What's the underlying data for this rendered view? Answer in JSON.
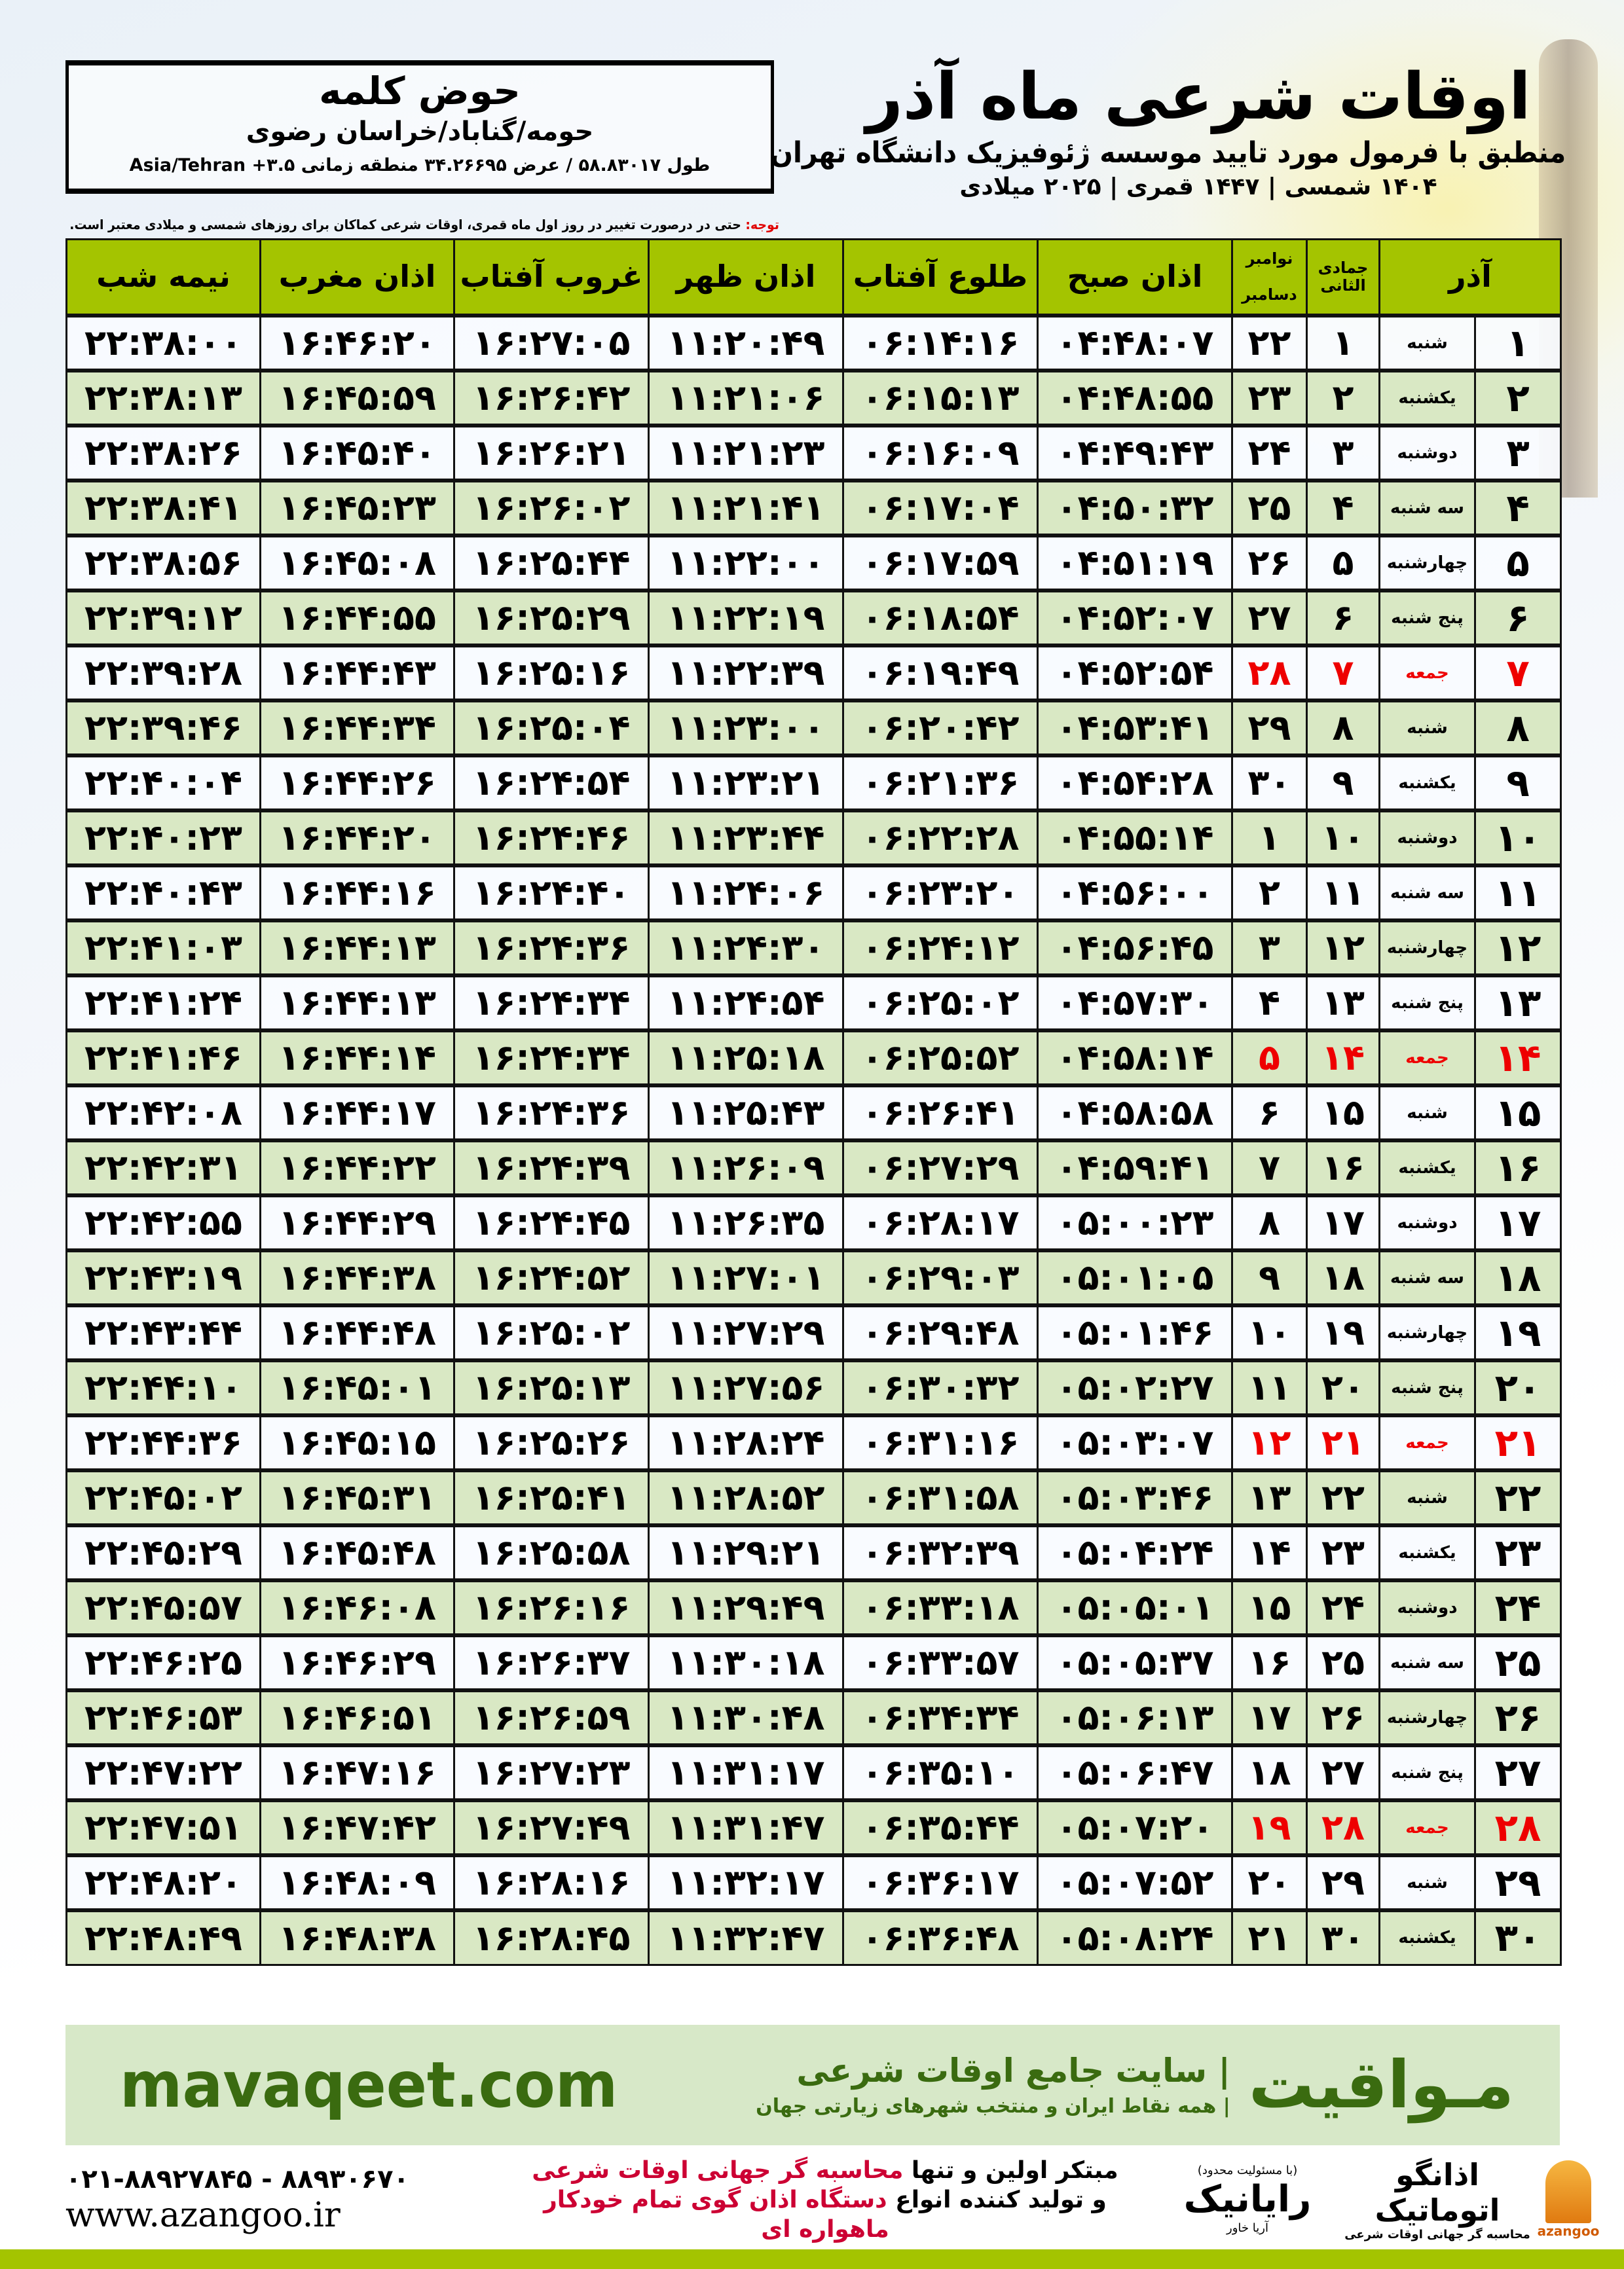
{
  "header": {
    "title": "اوقات شرعی ماه آذر",
    "subtitle": "منطبق با فرمول مورد تایید موسسه ژئوفیزیک دانشگاه تهران",
    "dates": "۱۴۰۴ شمسی | ۱۴۴۷ قمری | ۲۰۲۵ میلادی"
  },
  "location": {
    "name": "حوض کلمه",
    "region": "حومه/گناباد/خراسان رضوی",
    "coords": "طول ۵۸.۸۳۰۱۷ / عرض ۳۴.۲۶۶۹۵ منطقه زمانی ۳.۵+ Asia/Tehran"
  },
  "note": {
    "label": "توجه:",
    "text": " حتی در درصورت تغییر در روز اول ماه قمری، اوقات شرعی کماکان برای روزهای شمسی و میلادی معتبر است."
  },
  "colors": {
    "header_green": "#a4c400",
    "row_green": "#d9e8c4",
    "holiday_red": "#ee0000",
    "brand_green": "#3a6b10"
  },
  "table": {
    "columns": {
      "day": "آذر",
      "hijri": "جمادی الثانی",
      "greg_top": "نوامبر",
      "greg_bottom": "دسامبر",
      "fajr": "اذان صبح",
      "sunrise": "طلوع آفتاب",
      "dhuhr": "اذان ظهر",
      "sunset": "غروب آفتاب",
      "maghrib": "اذان مغرب",
      "midnight": "نیمه شب"
    },
    "rows": [
      {
        "day": "۱",
        "weekday": "شنبه",
        "hijri": "۱",
        "greg": "۲۲",
        "fajr": "۰۴:۴۸:۰۷",
        "sunrise": "۰۶:۱۴:۱۶",
        "dhuhr": "۱۱:۲۰:۴۹",
        "sunset": "۱۶:۲۷:۰۵",
        "maghrib": "۱۶:۴۶:۲۰",
        "midnight": "۲۲:۳۸:۰۰",
        "holiday": false
      },
      {
        "day": "۲",
        "weekday": "یکشنبه",
        "hijri": "۲",
        "greg": "۲۳",
        "fajr": "۰۴:۴۸:۵۵",
        "sunrise": "۰۶:۱۵:۱۳",
        "dhuhr": "۱۱:۲۱:۰۶",
        "sunset": "۱۶:۲۶:۴۲",
        "maghrib": "۱۶:۴۵:۵۹",
        "midnight": "۲۲:۳۸:۱۳",
        "holiday": false
      },
      {
        "day": "۳",
        "weekday": "دوشنبه",
        "hijri": "۳",
        "greg": "۲۴",
        "fajr": "۰۴:۴۹:۴۳",
        "sunrise": "۰۶:۱۶:۰۹",
        "dhuhr": "۱۱:۲۱:۲۳",
        "sunset": "۱۶:۲۶:۲۱",
        "maghrib": "۱۶:۴۵:۴۰",
        "midnight": "۲۲:۳۸:۲۶",
        "holiday": false
      },
      {
        "day": "۴",
        "weekday": "سه شنبه",
        "hijri": "۴",
        "greg": "۲۵",
        "fajr": "۰۴:۵۰:۳۲",
        "sunrise": "۰۶:۱۷:۰۴",
        "dhuhr": "۱۱:۲۱:۴۱",
        "sunset": "۱۶:۲۶:۰۲",
        "maghrib": "۱۶:۴۵:۲۳",
        "midnight": "۲۲:۳۸:۴۱",
        "holiday": false
      },
      {
        "day": "۵",
        "weekday": "چهارشنبه",
        "hijri": "۵",
        "greg": "۲۶",
        "fajr": "۰۴:۵۱:۱۹",
        "sunrise": "۰۶:۱۷:۵۹",
        "dhuhr": "۱۱:۲۲:۰۰",
        "sunset": "۱۶:۲۵:۴۴",
        "maghrib": "۱۶:۴۵:۰۸",
        "midnight": "۲۲:۳۸:۵۶",
        "holiday": false
      },
      {
        "day": "۶",
        "weekday": "پنج شنبه",
        "hijri": "۶",
        "greg": "۲۷",
        "fajr": "۰۴:۵۲:۰۷",
        "sunrise": "۰۶:۱۸:۵۴",
        "dhuhr": "۱۱:۲۲:۱۹",
        "sunset": "۱۶:۲۵:۲۹",
        "maghrib": "۱۶:۴۴:۵۵",
        "midnight": "۲۲:۳۹:۱۲",
        "holiday": false
      },
      {
        "day": "۷",
        "weekday": "جمعه",
        "hijri": "۷",
        "greg": "۲۸",
        "fajr": "۰۴:۵۲:۵۴",
        "sunrise": "۰۶:۱۹:۴۹",
        "dhuhr": "۱۱:۲۲:۳۹",
        "sunset": "۱۶:۲۵:۱۶",
        "maghrib": "۱۶:۴۴:۴۳",
        "midnight": "۲۲:۳۹:۲۸",
        "holiday": true
      },
      {
        "day": "۸",
        "weekday": "شنبه",
        "hijri": "۸",
        "greg": "۲۹",
        "fajr": "۰۴:۵۳:۴۱",
        "sunrise": "۰۶:۲۰:۴۲",
        "dhuhr": "۱۱:۲۳:۰۰",
        "sunset": "۱۶:۲۵:۰۴",
        "maghrib": "۱۶:۴۴:۳۴",
        "midnight": "۲۲:۳۹:۴۶",
        "holiday": false
      },
      {
        "day": "۹",
        "weekday": "یکشنبه",
        "hijri": "۹",
        "greg": "۳۰",
        "fajr": "۰۴:۵۴:۲۸",
        "sunrise": "۰۶:۲۱:۳۶",
        "dhuhr": "۱۱:۲۳:۲۱",
        "sunset": "۱۶:۲۴:۵۴",
        "maghrib": "۱۶:۴۴:۲۶",
        "midnight": "۲۲:۴۰:۰۴",
        "holiday": false
      },
      {
        "day": "۱۰",
        "weekday": "دوشنبه",
        "hijri": "۱۰",
        "greg": "۱",
        "fajr": "۰۴:۵۵:۱۴",
        "sunrise": "۰۶:۲۲:۲۸",
        "dhuhr": "۱۱:۲۳:۴۴",
        "sunset": "۱۶:۲۴:۴۶",
        "maghrib": "۱۶:۴۴:۲۰",
        "midnight": "۲۲:۴۰:۲۳",
        "holiday": false
      },
      {
        "day": "۱۱",
        "weekday": "سه شنبه",
        "hijri": "۱۱",
        "greg": "۲",
        "fajr": "۰۴:۵۶:۰۰",
        "sunrise": "۰۶:۲۳:۲۰",
        "dhuhr": "۱۱:۲۴:۰۶",
        "sunset": "۱۶:۲۴:۴۰",
        "maghrib": "۱۶:۴۴:۱۶",
        "midnight": "۲۲:۴۰:۴۳",
        "holiday": false
      },
      {
        "day": "۱۲",
        "weekday": "چهارشنبه",
        "hijri": "۱۲",
        "greg": "۳",
        "fajr": "۰۴:۵۶:۴۵",
        "sunrise": "۰۶:۲۴:۱۲",
        "dhuhr": "۱۱:۲۴:۳۰",
        "sunset": "۱۶:۲۴:۳۶",
        "maghrib": "۱۶:۴۴:۱۳",
        "midnight": "۲۲:۴۱:۰۳",
        "holiday": false
      },
      {
        "day": "۱۳",
        "weekday": "پنج شنبه",
        "hijri": "۱۳",
        "greg": "۴",
        "fajr": "۰۴:۵۷:۳۰",
        "sunrise": "۰۶:۲۵:۰۲",
        "dhuhr": "۱۱:۲۴:۵۴",
        "sunset": "۱۶:۲۴:۳۴",
        "maghrib": "۱۶:۴۴:۱۳",
        "midnight": "۲۲:۴۱:۲۴",
        "holiday": false
      },
      {
        "day": "۱۴",
        "weekday": "جمعه",
        "hijri": "۱۴",
        "greg": "۵",
        "fajr": "۰۴:۵۸:۱۴",
        "sunrise": "۰۶:۲۵:۵۲",
        "dhuhr": "۱۱:۲۵:۱۸",
        "sunset": "۱۶:۲۴:۳۴",
        "maghrib": "۱۶:۴۴:۱۴",
        "midnight": "۲۲:۴۱:۴۶",
        "holiday": true
      },
      {
        "day": "۱۵",
        "weekday": "شنبه",
        "hijri": "۱۵",
        "greg": "۶",
        "fajr": "۰۴:۵۸:۵۸",
        "sunrise": "۰۶:۲۶:۴۱",
        "dhuhr": "۱۱:۲۵:۴۳",
        "sunset": "۱۶:۲۴:۳۶",
        "maghrib": "۱۶:۴۴:۱۷",
        "midnight": "۲۲:۴۲:۰۸",
        "holiday": false
      },
      {
        "day": "۱۶",
        "weekday": "یکشنبه",
        "hijri": "۱۶",
        "greg": "۷",
        "fajr": "۰۴:۵۹:۴۱",
        "sunrise": "۰۶:۲۷:۲۹",
        "dhuhr": "۱۱:۲۶:۰۹",
        "sunset": "۱۶:۲۴:۳۹",
        "maghrib": "۱۶:۴۴:۲۲",
        "midnight": "۲۲:۴۲:۳۱",
        "holiday": false
      },
      {
        "day": "۱۷",
        "weekday": "دوشنبه",
        "hijri": "۱۷",
        "greg": "۸",
        "fajr": "۰۵:۰۰:۲۳",
        "sunrise": "۰۶:۲۸:۱۷",
        "dhuhr": "۱۱:۲۶:۳۵",
        "sunset": "۱۶:۲۴:۴۵",
        "maghrib": "۱۶:۴۴:۲۹",
        "midnight": "۲۲:۴۲:۵۵",
        "holiday": false
      },
      {
        "day": "۱۸",
        "weekday": "سه شنبه",
        "hijri": "۱۸",
        "greg": "۹",
        "fajr": "۰۵:۰۱:۰۵",
        "sunrise": "۰۶:۲۹:۰۳",
        "dhuhr": "۱۱:۲۷:۰۱",
        "sunset": "۱۶:۲۴:۵۲",
        "maghrib": "۱۶:۴۴:۳۸",
        "midnight": "۲۲:۴۳:۱۹",
        "holiday": false
      },
      {
        "day": "۱۹",
        "weekday": "چهارشنبه",
        "hijri": "۱۹",
        "greg": "۱۰",
        "fajr": "۰۵:۰۱:۴۶",
        "sunrise": "۰۶:۲۹:۴۸",
        "dhuhr": "۱۱:۲۷:۲۹",
        "sunset": "۱۶:۲۵:۰۲",
        "maghrib": "۱۶:۴۴:۴۸",
        "midnight": "۲۲:۴۳:۴۴",
        "holiday": false
      },
      {
        "day": "۲۰",
        "weekday": "پنج شنبه",
        "hijri": "۲۰",
        "greg": "۱۱",
        "fajr": "۰۵:۰۲:۲۷",
        "sunrise": "۰۶:۳۰:۳۲",
        "dhuhr": "۱۱:۲۷:۵۶",
        "sunset": "۱۶:۲۵:۱۳",
        "maghrib": "۱۶:۴۵:۰۱",
        "midnight": "۲۲:۴۴:۱۰",
        "holiday": false
      },
      {
        "day": "۲۱",
        "weekday": "جمعه",
        "hijri": "۲۱",
        "greg": "۱۲",
        "fajr": "۰۵:۰۳:۰۷",
        "sunrise": "۰۶:۳۱:۱۶",
        "dhuhr": "۱۱:۲۸:۲۴",
        "sunset": "۱۶:۲۵:۲۶",
        "maghrib": "۱۶:۴۵:۱۵",
        "midnight": "۲۲:۴۴:۳۶",
        "holiday": true
      },
      {
        "day": "۲۲",
        "weekday": "شنبه",
        "hijri": "۲۲",
        "greg": "۱۳",
        "fajr": "۰۵:۰۳:۴۶",
        "sunrise": "۰۶:۳۱:۵۸",
        "dhuhr": "۱۱:۲۸:۵۲",
        "sunset": "۱۶:۲۵:۴۱",
        "maghrib": "۱۶:۴۵:۳۱",
        "midnight": "۲۲:۴۵:۰۲",
        "holiday": false
      },
      {
        "day": "۲۳",
        "weekday": "یکشنبه",
        "hijri": "۲۳",
        "greg": "۱۴",
        "fajr": "۰۵:۰۴:۲۴",
        "sunrise": "۰۶:۳۲:۳۹",
        "dhuhr": "۱۱:۲۹:۲۱",
        "sunset": "۱۶:۲۵:۵۸",
        "maghrib": "۱۶:۴۵:۴۸",
        "midnight": "۲۲:۴۵:۲۹",
        "holiday": false
      },
      {
        "day": "۲۴",
        "weekday": "دوشنبه",
        "hijri": "۲۴",
        "greg": "۱۵",
        "fajr": "۰۵:۰۵:۰۱",
        "sunrise": "۰۶:۳۳:۱۸",
        "dhuhr": "۱۱:۲۹:۴۹",
        "sunset": "۱۶:۲۶:۱۶",
        "maghrib": "۱۶:۴۶:۰۸",
        "midnight": "۲۲:۴۵:۵۷",
        "holiday": false
      },
      {
        "day": "۲۵",
        "weekday": "سه شنبه",
        "hijri": "۲۵",
        "greg": "۱۶",
        "fajr": "۰۵:۰۵:۳۷",
        "sunrise": "۰۶:۳۳:۵۷",
        "dhuhr": "۱۱:۳۰:۱۸",
        "sunset": "۱۶:۲۶:۳۷",
        "maghrib": "۱۶:۴۶:۲۹",
        "midnight": "۲۲:۴۶:۲۵",
        "holiday": false
      },
      {
        "day": "۲۶",
        "weekday": "چهارشنبه",
        "hijri": "۲۶",
        "greg": "۱۷",
        "fajr": "۰۵:۰۶:۱۳",
        "sunrise": "۰۶:۳۴:۳۴",
        "dhuhr": "۱۱:۳۰:۴۸",
        "sunset": "۱۶:۲۶:۵۹",
        "maghrib": "۱۶:۴۶:۵۱",
        "midnight": "۲۲:۴۶:۵۳",
        "holiday": false
      },
      {
        "day": "۲۷",
        "weekday": "پنج شنبه",
        "hijri": "۲۷",
        "greg": "۱۸",
        "fajr": "۰۵:۰۶:۴۷",
        "sunrise": "۰۶:۳۵:۱۰",
        "dhuhr": "۱۱:۳۱:۱۷",
        "sunset": "۱۶:۲۷:۲۳",
        "maghrib": "۱۶:۴۷:۱۶",
        "midnight": "۲۲:۴۷:۲۲",
        "holiday": false
      },
      {
        "day": "۲۸",
        "weekday": "جمعه",
        "hijri": "۲۸",
        "greg": "۱۹",
        "fajr": "۰۵:۰۷:۲۰",
        "sunrise": "۰۶:۳۵:۴۴",
        "dhuhr": "۱۱:۳۱:۴۷",
        "sunset": "۱۶:۲۷:۴۹",
        "maghrib": "۱۶:۴۷:۴۲",
        "midnight": "۲۲:۴۷:۵۱",
        "holiday": true
      },
      {
        "day": "۲۹",
        "weekday": "شنبه",
        "hijri": "۲۹",
        "greg": "۲۰",
        "fajr": "۰۵:۰۷:۵۲",
        "sunrise": "۰۶:۳۶:۱۷",
        "dhuhr": "۱۱:۳۲:۱۷",
        "sunset": "۱۶:۲۸:۱۶",
        "maghrib": "۱۶:۴۸:۰۹",
        "midnight": "۲۲:۴۸:۲۰",
        "holiday": false
      },
      {
        "day": "۳۰",
        "weekday": "یکشنبه",
        "hijri": "۳۰",
        "greg": "۲۱",
        "fajr": "۰۵:۰۸:۲۴",
        "sunrise": "۰۶:۳۶:۴۸",
        "dhuhr": "۱۱:۳۲:۴۷",
        "sunset": "۱۶:۲۸:۴۵",
        "maghrib": "۱۶:۴۸:۳۸",
        "midnight": "۲۲:۴۸:۴۹",
        "holiday": false
      }
    ]
  },
  "footer": {
    "brand": "مـواقیت",
    "tagline": "| سایت جامع اوقات شرعی",
    "tagline2": "| همه نقاط ایران و منتخب شهرهای زیارتی جهان",
    "site": "mavaqeet.com",
    "line1_a": "مبتکر اولین و تنها ",
    "line1_b": "محاسبه گر جهانی اوقات شرعی",
    "line2_a": "و تولید کننده انواع ",
    "line2_b": "دستگاه اذان گوی تمام خودکار ماهواره ای",
    "phone": "۰۲۱-۸۸۹۲۷۸۴۵ - ۸۸۹۳۰۶۷۰",
    "web": "www.azangoo.ir",
    "logo_rayanik": "رایانیک",
    "logo_rayanik_sub": "آریا خاور",
    "logo_rayanik_top": "(با مسئولیت محدود)",
    "logo_azangoo": "اذانگو اتوماتیک",
    "logo_azangoo_sub": "محاسبه گر جهانی اوقات شرعی",
    "logo_azangoo_en": "azangoo"
  }
}
